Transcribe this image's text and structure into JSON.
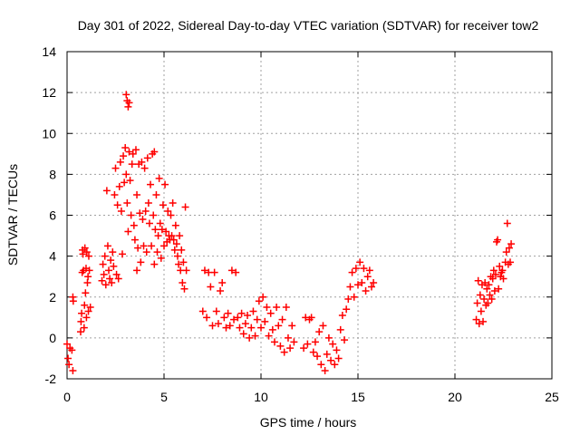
{
  "chart_data": {
    "type": "scatter",
    "title": "Day 301 of 2022, Sidereal Day-to-day VTEC variation (SDTVAR) for receiver tow2",
    "xlabel": "GPS time / hours",
    "ylabel": "SDTVAR / TECUs",
    "xlim": [
      0,
      25
    ],
    "ylim": [
      -2,
      14
    ],
    "xticks": [
      "0",
      "5",
      "10",
      "15",
      "20",
      "25"
    ],
    "yticks": [
      "-2",
      "0",
      "2",
      "4",
      "6",
      "8",
      "10",
      "12",
      "14"
    ],
    "grid": true,
    "marker": "plus",
    "color": "#ff0000",
    "series": [
      {
        "name": "SDTVAR",
        "points": [
          [
            0.0,
            -0.3
          ],
          [
            0.05,
            -1.0
          ],
          [
            0.1,
            -1.3
          ],
          [
            0.15,
            -0.5
          ],
          [
            0.25,
            -0.6
          ],
          [
            0.3,
            -1.6
          ],
          [
            0.3,
            2.0
          ],
          [
            0.32,
            1.8
          ],
          [
            0.7,
            0.3
          ],
          [
            0.72,
            0.8
          ],
          [
            0.75,
            1.2
          ],
          [
            0.78,
            3.2
          ],
          [
            0.8,
            4.3
          ],
          [
            0.82,
            4.1
          ],
          [
            0.85,
            3.3
          ],
          [
            0.88,
            0.5
          ],
          [
            0.9,
            1.6
          ],
          [
            0.92,
            4.4
          ],
          [
            0.95,
            2.2
          ],
          [
            0.98,
            3.4
          ],
          [
            1.0,
            1.0
          ],
          [
            1.02,
            4.2
          ],
          [
            1.05,
            2.7
          ],
          [
            1.08,
            3.0
          ],
          [
            1.1,
            1.3
          ],
          [
            1.12,
            4.0
          ],
          [
            1.15,
            3.3
          ],
          [
            1.2,
            1.5
          ],
          [
            1.8,
            2.8
          ],
          [
            1.85,
            3.6
          ],
          [
            1.9,
            3.1
          ],
          [
            1.95,
            4.0
          ],
          [
            2.0,
            2.6
          ],
          [
            2.05,
            7.2
          ],
          [
            2.1,
            4.5
          ],
          [
            2.15,
            3.3
          ],
          [
            2.2,
            2.9
          ],
          [
            2.25,
            3.8
          ],
          [
            2.3,
            2.7
          ],
          [
            2.35,
            4.2
          ],
          [
            2.4,
            3.5
          ],
          [
            2.45,
            7.0
          ],
          [
            2.5,
            8.3
          ],
          [
            2.55,
            3.1
          ],
          [
            2.6,
            6.5
          ],
          [
            2.65,
            2.9
          ],
          [
            2.7,
            7.4
          ],
          [
            2.75,
            8.6
          ],
          [
            2.8,
            6.2
          ],
          [
            2.85,
            4.1
          ],
          [
            2.9,
            8.9
          ],
          [
            2.95,
            7.6
          ],
          [
            3.0,
            9.3
          ],
          [
            3.05,
            8.0
          ],
          [
            3.05,
            11.9
          ],
          [
            3.1,
            11.6
          ],
          [
            3.1,
            6.6
          ],
          [
            3.15,
            5.2
          ],
          [
            3.15,
            11.3
          ],
          [
            3.2,
            9.1
          ],
          [
            3.2,
            11.5
          ],
          [
            3.25,
            7.7
          ],
          [
            3.3,
            6.0
          ],
          [
            3.35,
            8.5
          ],
          [
            3.4,
            9.0
          ],
          [
            3.45,
            5.5
          ],
          [
            3.5,
            4.8
          ],
          [
            3.55,
            9.2
          ],
          [
            3.6,
            7.0
          ],
          [
            3.6,
            3.3
          ],
          [
            3.65,
            4.4
          ],
          [
            3.7,
            8.5
          ],
          [
            3.75,
            6.1
          ],
          [
            3.8,
            3.7
          ],
          [
            3.85,
            8.6
          ],
          [
            3.9,
            5.8
          ],
          [
            3.95,
            4.5
          ],
          [
            4.0,
            8.3
          ],
          [
            4.05,
            6.2
          ],
          [
            4.1,
            4.2
          ],
          [
            4.15,
            8.8
          ],
          [
            4.2,
            6.6
          ],
          [
            4.25,
            5.6
          ],
          [
            4.3,
            7.5
          ],
          [
            4.35,
            4.5
          ],
          [
            4.4,
            9.0
          ],
          [
            4.45,
            6.0
          ],
          [
            4.5,
            9.1
          ],
          [
            4.5,
            3.6
          ],
          [
            4.55,
            5.3
          ],
          [
            4.6,
            7.0
          ],
          [
            4.65,
            4.2
          ],
          [
            4.7,
            5.0
          ],
          [
            4.75,
            7.8
          ],
          [
            4.8,
            5.6
          ],
          [
            4.85,
            3.9
          ],
          [
            4.9,
            5.3
          ],
          [
            4.95,
            6.5
          ],
          [
            5.0,
            4.5
          ],
          [
            5.05,
            7.5
          ],
          [
            5.1,
            5.2
          ],
          [
            5.15,
            4.7
          ],
          [
            5.2,
            6.2
          ],
          [
            5.25,
            5.0
          ],
          [
            5.3,
            4.8
          ],
          [
            5.35,
            6.0
          ],
          [
            5.4,
            5.0
          ],
          [
            5.45,
            6.6
          ],
          [
            5.5,
            4.8
          ],
          [
            5.55,
            4.3
          ],
          [
            5.6,
            5.5
          ],
          [
            5.65,
            4.6
          ],
          [
            5.7,
            4.0
          ],
          [
            5.75,
            3.6
          ],
          [
            5.8,
            5.0
          ],
          [
            5.85,
            3.3
          ],
          [
            5.9,
            4.3
          ],
          [
            5.95,
            2.7
          ],
          [
            6.0,
            3.7
          ],
          [
            6.05,
            2.4
          ],
          [
            6.1,
            6.4
          ],
          [
            6.15,
            3.3
          ],
          [
            7.0,
            1.3
          ],
          [
            7.1,
            3.3
          ],
          [
            7.2,
            1.0
          ],
          [
            7.3,
            3.2
          ],
          [
            7.4,
            2.5
          ],
          [
            7.5,
            0.6
          ],
          [
            7.6,
            3.2
          ],
          [
            7.7,
            1.3
          ],
          [
            7.8,
            0.7
          ],
          [
            7.9,
            2.3
          ],
          [
            8.0,
            2.7
          ],
          [
            8.1,
            1.0
          ],
          [
            8.2,
            0.5
          ],
          [
            8.3,
            1.2
          ],
          [
            8.4,
            0.6
          ],
          [
            8.5,
            3.3
          ],
          [
            8.6,
            0.9
          ],
          [
            8.7,
            3.2
          ],
          [
            8.8,
            1.0
          ],
          [
            8.9,
            0.5
          ],
          [
            9.0,
            1.2
          ],
          [
            9.1,
            0.2
          ],
          [
            9.2,
            0.7
          ],
          [
            9.3,
            1.1
          ],
          [
            9.4,
            0.0
          ],
          [
            9.5,
            0.5
          ],
          [
            9.6,
            1.3
          ],
          [
            9.7,
            0.1
          ],
          [
            9.8,
            0.9
          ],
          [
            9.9,
            1.8
          ],
          [
            10.0,
            0.5
          ],
          [
            10.1,
            2.0
          ],
          [
            10.2,
            0.8
          ],
          [
            10.3,
            1.5
          ],
          [
            10.4,
            0.1
          ],
          [
            10.5,
            1.2
          ],
          [
            10.6,
            0.4
          ],
          [
            10.7,
            -0.2
          ],
          [
            10.8,
            1.5
          ],
          [
            10.9,
            0.6
          ],
          [
            11.0,
            -0.4
          ],
          [
            11.1,
            0.9
          ],
          [
            11.2,
            -0.7
          ],
          [
            11.3,
            1.5
          ],
          [
            11.4,
            0.0
          ],
          [
            11.5,
            -0.5
          ],
          [
            11.6,
            0.6
          ],
          [
            11.7,
            -0.2
          ],
          [
            12.2,
            -0.5
          ],
          [
            12.3,
            1.0
          ],
          [
            12.4,
            -0.3
          ],
          [
            12.5,
            0.9
          ],
          [
            12.6,
            1.0
          ],
          [
            12.7,
            -0.7
          ],
          [
            12.8,
            -0.2
          ],
          [
            12.9,
            -0.9
          ],
          [
            13.0,
            0.3
          ],
          [
            13.1,
            -1.3
          ],
          [
            13.2,
            0.6
          ],
          [
            13.3,
            -1.6
          ],
          [
            13.4,
            -0.8
          ],
          [
            13.5,
            0.0
          ],
          [
            13.6,
            -1.1
          ],
          [
            13.7,
            -0.3
          ],
          [
            13.8,
            -1.3
          ],
          [
            13.9,
            -0.6
          ],
          [
            14.0,
            -1.0
          ],
          [
            14.1,
            0.4
          ],
          [
            14.2,
            1.1
          ],
          [
            14.3,
            -0.1
          ],
          [
            14.4,
            1.4
          ],
          [
            14.5,
            1.9
          ],
          [
            14.6,
            2.5
          ],
          [
            14.7,
            3.2
          ],
          [
            14.8,
            2.0
          ],
          [
            14.9,
            3.4
          ],
          [
            15.0,
            2.6
          ],
          [
            15.1,
            3.7
          ],
          [
            15.2,
            2.7
          ],
          [
            15.3,
            3.4
          ],
          [
            15.4,
            2.3
          ],
          [
            15.5,
            3.0
          ],
          [
            15.6,
            3.3
          ],
          [
            15.7,
            2.5
          ],
          [
            15.8,
            2.7
          ],
          [
            21.1,
            0.9
          ],
          [
            21.15,
            1.7
          ],
          [
            21.2,
            2.8
          ],
          [
            21.25,
            0.7
          ],
          [
            21.3,
            2.1
          ],
          [
            21.35,
            1.3
          ],
          [
            21.4,
            2.6
          ],
          [
            21.45,
            0.8
          ],
          [
            21.5,
            1.9
          ],
          [
            21.55,
            2.7
          ],
          [
            21.6,
            1.6
          ],
          [
            21.65,
            2.4
          ],
          [
            21.7,
            1.7
          ],
          [
            21.75,
            2.6
          ],
          [
            21.8,
            2.1
          ],
          [
            21.85,
            3.0
          ],
          [
            21.9,
            1.9
          ],
          [
            21.95,
            2.9
          ],
          [
            22.0,
            3.3
          ],
          [
            22.05,
            2.3
          ],
          [
            22.1,
            3.1
          ],
          [
            22.15,
            4.7
          ],
          [
            22.2,
            4.8
          ],
          [
            22.25,
            2.4
          ],
          [
            22.3,
            3.5
          ],
          [
            22.35,
            3.0
          ],
          [
            22.4,
            3.2
          ],
          [
            22.45,
            3.3
          ],
          [
            22.5,
            2.9
          ],
          [
            22.6,
            3.7
          ],
          [
            22.65,
            4.2
          ],
          [
            22.7,
            5.6
          ],
          [
            22.75,
            3.6
          ],
          [
            22.8,
            4.4
          ],
          [
            22.85,
            3.7
          ],
          [
            22.9,
            4.6
          ]
        ]
      }
    ]
  }
}
